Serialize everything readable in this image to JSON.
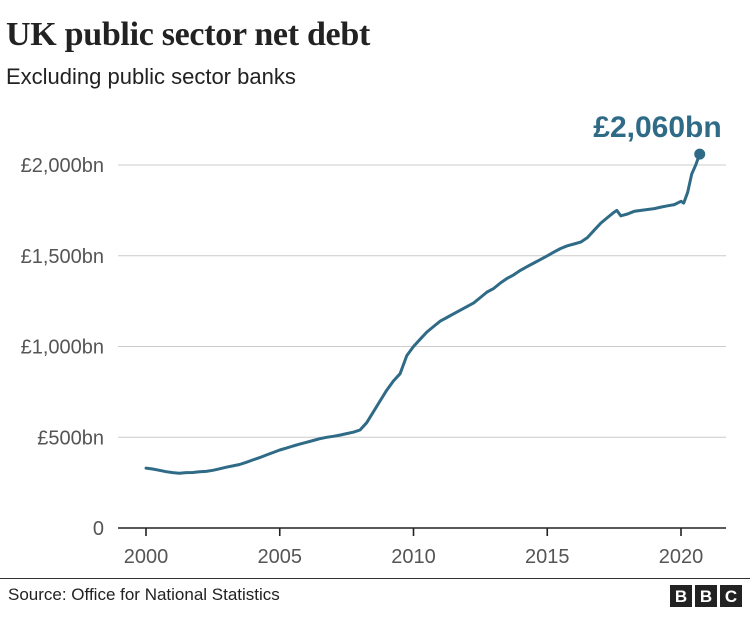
{
  "chart_data": {
    "type": "line",
    "title": "UK public sector net debt",
    "subtitle": "Excluding public sector banks",
    "xlabel": "",
    "ylabel": "",
    "xlim": [
      2000,
      2021
    ],
    "ylim": [
      0,
      2000
    ],
    "x_ticks": [
      2000,
      2005,
      2010,
      2015,
      2020
    ],
    "x_tick_labels": [
      "2000",
      "2005",
      "2010",
      "2015",
      "2020"
    ],
    "y_ticks": [
      0,
      500,
      1000,
      1500,
      2000
    ],
    "y_tick_labels": [
      "0",
      "£500bn",
      "£1,000bn",
      "£1,500bn",
      "£2,000bn"
    ],
    "grid": true,
    "series_color": "#2f6b86",
    "series": [
      {
        "x": [
          2000.0,
          2000.25,
          2000.5,
          2000.75,
          2001.0,
          2001.25,
          2001.5,
          2001.75,
          2002.0,
          2002.25,
          2002.5,
          2002.75,
          2003.0,
          2003.25,
          2003.5,
          2003.75,
          2004.0,
          2004.25,
          2004.5,
          2004.75,
          2005.0,
          2005.25,
          2005.5,
          2005.75,
          2006.0,
          2006.25,
          2006.5,
          2006.75,
          2007.0,
          2007.25,
          2007.5,
          2007.75,
          2008.0,
          2008.25,
          2008.5,
          2008.75,
          2009.0,
          2009.25,
          2009.5,
          2009.75,
          2010.0,
          2010.25,
          2010.5,
          2010.75,
          2011.0,
          2011.25,
          2011.5,
          2011.75,
          2012.0,
          2012.25,
          2012.5,
          2012.75,
          2013.0,
          2013.25,
          2013.5,
          2013.75,
          2014.0,
          2014.25,
          2014.5,
          2014.75,
          2015.0,
          2015.25,
          2015.5,
          2015.75,
          2016.0,
          2016.25,
          2016.5,
          2016.75,
          2017.0,
          2017.25,
          2017.5,
          2017.6,
          2017.75,
          2018.0,
          2018.25,
          2018.5,
          2018.75,
          2019.0,
          2019.25,
          2019.5,
          2019.75,
          2020.0,
          2020.1,
          2020.25,
          2020.4,
          2020.55,
          2020.7
        ],
        "values": [
          330,
          325,
          318,
          310,
          305,
          302,
          305,
          306,
          310,
          312,
          318,
          326,
          335,
          342,
          350,
          362,
          375,
          388,
          402,
          416,
          430,
          440,
          452,
          462,
          472,
          482,
          492,
          500,
          505,
          512,
          520,
          528,
          540,
          580,
          640,
          700,
          760,
          810,
          850,
          950,
          1000,
          1040,
          1080,
          1110,
          1140,
          1160,
          1180,
          1200,
          1220,
          1240,
          1270,
          1300,
          1320,
          1350,
          1375,
          1395,
          1420,
          1440,
          1460,
          1480,
          1500,
          1520,
          1540,
          1555,
          1565,
          1575,
          1600,
          1640,
          1680,
          1710,
          1740,
          1750,
          1720,
          1730,
          1745,
          1750,
          1755,
          1760,
          1768,
          1775,
          1782,
          1800,
          1790,
          1850,
          1950,
          2000,
          2060
        ]
      }
    ],
    "annotations": [
      {
        "text": "£2,060bn",
        "x": 2020.7,
        "y": 2060
      }
    ]
  },
  "footer": {
    "source": "Source: Office for National Statistics",
    "logo_letters": [
      "B",
      "B",
      "C"
    ]
  },
  "colors": {
    "line": "#2f6b86",
    "grid": "#cccccc",
    "axis": "#222222",
    "logo_bg": "#222222"
  }
}
